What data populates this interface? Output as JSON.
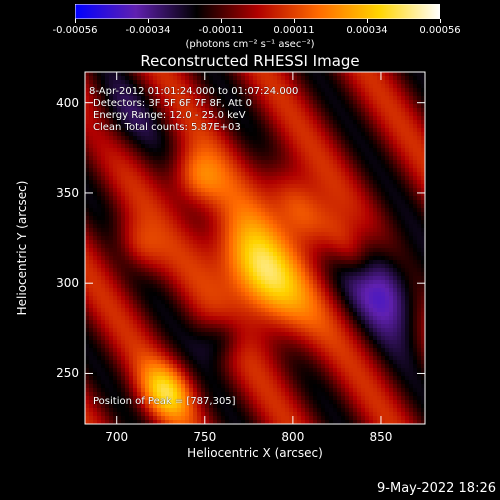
{
  "colorbar": {
    "ticks": [
      "-0.00056",
      "-0.00034",
      "-0.00011",
      "0.00011",
      "0.00034",
      "0.00056"
    ],
    "unit_label": "(photons cm⁻² s⁻¹ asec⁻²)"
  },
  "annotations": {
    "time_range": "8-Apr-2012 01:01:24.000 to 01:07:24.000",
    "detectors": "Detectors: 3F 5F 6F 7F 8F, Att 0",
    "energy_range": "Energy Range: 12.0 - 25.0 keV",
    "method": "Clean     Total counts: 5.87E+03",
    "peak_position": "Position of Peak = [787,305]"
  },
  "footer_date": "9-May-2022 18:26",
  "chart_data": {
    "type": "heatmap",
    "title": "Reconstructed RHESSI Image",
    "xlabel": "Heliocentric X (arcsec)",
    "ylabel": "Heliocentric Y (arcsec)",
    "xlim": [
      682,
      875
    ],
    "ylim": [
      222,
      417
    ],
    "x_ticks": [
      700,
      750,
      800,
      850
    ],
    "y_ticks": [
      250,
      300,
      350,
      400
    ],
    "colorscale": [
      "#0000ff",
      "#6020b0",
      "#000000",
      "#b00000",
      "#ff6a00",
      "#ffd400",
      "#ffffff"
    ],
    "value_range": [
      -0.00056,
      0.00056
    ],
    "peak": [
      787,
      305
    ],
    "sources": [
      {
        "x": 780,
        "y": 305,
        "sx": 13,
        "sy": 26,
        "amp": 0.00055
      },
      {
        "x": 805,
        "y": 340,
        "sx": 9,
        "sy": 20,
        "amp": 0.00034
      },
      {
        "x": 745,
        "y": 358,
        "sx": 10,
        "sy": 12,
        "amp": 0.0003
      },
      {
        "x": 832,
        "y": 318,
        "sx": 7,
        "sy": 16,
        "amp": 0.00022
      },
      {
        "x": 728,
        "y": 240,
        "sx": 10,
        "sy": 12,
        "amp": 0.00035
      },
      {
        "x": 712,
        "y": 320,
        "sx": 8,
        "sy": 12,
        "amp": 0.0002
      },
      {
        "x": 760,
        "y": 270,
        "sx": 9,
        "sy": 9,
        "amp": -0.0002
      },
      {
        "x": 852,
        "y": 300,
        "sx": 12,
        "sy": 22,
        "amp": -0.0004
      },
      {
        "x": 700,
        "y": 390,
        "sx": 15,
        "sy": 15,
        "amp": -0.00012
      }
    ]
  }
}
